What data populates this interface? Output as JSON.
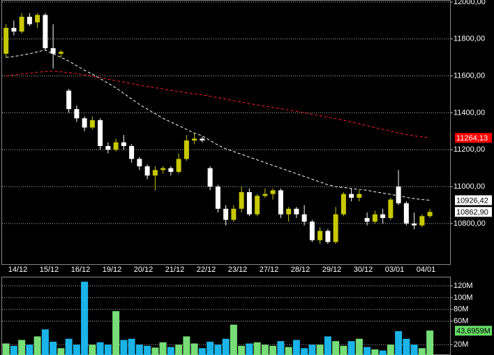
{
  "chart_data": [
    {
      "type": "candlestick",
      "categories": [
        null,
        "14/12",
        null,
        null,
        null,
        "15/12",
        null,
        null,
        null,
        "16/12",
        null,
        null,
        null,
        "19/12",
        null,
        null,
        null,
        "20/12",
        null,
        null,
        null,
        "21/12",
        null,
        null,
        null,
        "22/12",
        null,
        null,
        null,
        "23/12",
        null,
        null,
        null,
        "27/12",
        null,
        null,
        null,
        "28/12",
        null,
        null,
        null,
        "29/12",
        null,
        null,
        null,
        "30/12",
        null,
        null,
        null,
        "03/01",
        null,
        null,
        null,
        "04/01",
        null
      ],
      "open": [
        11720,
        11860,
        11840,
        11920,
        11890,
        11930,
        11750,
        11720,
        11520,
        11420,
        11370,
        11320,
        11360,
        11220,
        11200,
        11240,
        11220,
        11150,
        11110,
        11060,
        11090,
        11100,
        11080,
        11150,
        11250,
        11260,
        11100,
        11000,
        10880,
        10820,
        10880,
        10970,
        10850,
        10950,
        10960,
        10980,
        10850,
        10880,
        10850,
        10810,
        10710,
        10760,
        10700,
        10850,
        10960,
        10940,
        10830,
        10810,
        10850,
        10830,
        11000,
        10910,
        10800,
        10790,
        10840
      ],
      "high": [
        11880,
        11900,
        11940,
        11940,
        11940,
        11940,
        11880,
        11740,
        11530,
        11440,
        11380,
        11380,
        11370,
        11240,
        11260,
        11280,
        11230,
        11160,
        11120,
        11110,
        11110,
        11110,
        11180,
        11280,
        11290,
        11270,
        11110,
        11010,
        10900,
        10900,
        11000,
        10990,
        10960,
        10990,
        10990,
        10990,
        10890,
        10890,
        10900,
        10820,
        10780,
        10770,
        10890,
        10970,
        10990,
        10980,
        10860,
        10870,
        10880,
        10940,
        11090,
        10920,
        10860,
        10850,
        10880
      ],
      "low": [
        11700,
        11820,
        11830,
        11870,
        11860,
        11740,
        11640,
        11700,
        11400,
        11350,
        11300,
        11310,
        11200,
        11180,
        11190,
        11200,
        11130,
        11090,
        11040,
        10980,
        11070,
        11060,
        11070,
        11140,
        11230,
        11240,
        10980,
        10860,
        10790,
        10810,
        10860,
        10840,
        10840,
        10940,
        10930,
        10830,
        10810,
        10830,
        10790,
        10700,
        10690,
        10690,
        10690,
        10840,
        10920,
        10920,
        10790,
        10800,
        10800,
        10820,
        10900,
        10790,
        10770,
        10780,
        10830
      ],
      "close": [
        11860,
        11840,
        11920,
        11880,
        11930,
        11750,
        11720,
        11730,
        11420,
        11370,
        11320,
        11360,
        11220,
        11200,
        11240,
        11220,
        11150,
        11110,
        11060,
        11090,
        11100,
        11080,
        11150,
        11250,
        11260,
        11250,
        11000,
        10880,
        10820,
        10880,
        10970,
        10850,
        10950,
        10960,
        10980,
        10850,
        10880,
        10850,
        10810,
        10710,
        10760,
        10700,
        10850,
        10960,
        10940,
        10960,
        10810,
        10850,
        10830,
        10930,
        10910,
        10800,
        10790,
        10840,
        10863
      ],
      "up_color": "#c8c800",
      "down_color": "#ffffff",
      "series": [
        {
          "color": "#ffffff",
          "values": [
            11700,
            11705,
            11712,
            11720,
            11730,
            11740,
            11720,
            11700,
            11680,
            11655,
            11630,
            11610,
            11585,
            11560,
            11535,
            11505,
            11475,
            11445,
            11420,
            11395,
            11370,
            11350,
            11330,
            11310,
            11290,
            11275,
            11250,
            11225,
            11205,
            11190,
            11175,
            11160,
            11145,
            11130,
            11115,
            11100,
            11085,
            11070,
            11055,
            11040,
            11025,
            11010,
            11000,
            10995,
            10990,
            10985,
            10980,
            10972,
            10965,
            10958,
            10950,
            10942,
            10935,
            10930,
            10926.42
          ]
        },
        {
          "color": "#ff2020",
          "values": [
            11600,
            11605,
            11610,
            11615,
            11620,
            11623,
            11625,
            11622,
            11618,
            11612,
            11605,
            11598,
            11590,
            11582,
            11574,
            11566,
            11558,
            11550,
            11543,
            11536,
            11529,
            11522,
            11515,
            11509,
            11503,
            11497,
            11490,
            11482,
            11474,
            11466,
            11458,
            11450,
            11443,
            11436,
            11429,
            11422,
            11415,
            11408,
            11400,
            11392,
            11384,
            11376,
            11368,
            11360,
            11350,
            11340,
            11330,
            11320,
            11310,
            11300,
            11290,
            11282,
            11275,
            11269,
            11264.13
          ]
        }
      ],
      "markers": [
        {
          "value": 11264.13,
          "label": "11264,13",
          "color": "#ff0000"
        },
        {
          "value": 10926.42,
          "label": "10926,42",
          "color": "#ffffff"
        },
        {
          "value": 10862.9,
          "label": "10862,90",
          "color": "#ffffff"
        }
      ],
      "ylim": [
        10580,
        12011
      ],
      "yticks": [
        {
          "value": 10800,
          "label": "10800,00"
        },
        {
          "value": 11000,
          "label": "11000,00"
        },
        {
          "value": 11200,
          "label": "11200,00"
        },
        {
          "value": 11400,
          "label": "11400,00"
        },
        {
          "value": 11600,
          "label": "11600,00"
        },
        {
          "value": 11800,
          "label": "11800,00"
        },
        {
          "value": 12000,
          "label": "12000,00"
        }
      ],
      "grid": true
    },
    {
      "type": "bar",
      "values": [
        22,
        18,
        28,
        20,
        34,
        46,
        25,
        14,
        30,
        20,
        127,
        20,
        24,
        20,
        77,
        28,
        30,
        20,
        18,
        15,
        24,
        16,
        20,
        34,
        22,
        14,
        25,
        20,
        30,
        54,
        18,
        22,
        24,
        20,
        18,
        26,
        16,
        28,
        14,
        20,
        20,
        34,
        26,
        18,
        26,
        30,
        16,
        12,
        10,
        20,
        43,
        30,
        20,
        14,
        44
      ],
      "up_color": "#77dd77",
      "down_color": "#1ab4e8",
      "markers": [
        {
          "value": 43.6959,
          "label": "43,6959M",
          "color": "#66dd66"
        }
      ],
      "ylim": [
        2.4,
        134.3
      ],
      "yticks": [
        {
          "value": 20,
          "label": "20M"
        },
        {
          "value": 60,
          "label": "60M"
        },
        {
          "value": 80,
          "label": "80M"
        },
        {
          "value": 100,
          "label": "100M"
        },
        {
          "value": 120,
          "label": "120M"
        }
      ],
      "grid": true
    }
  ]
}
